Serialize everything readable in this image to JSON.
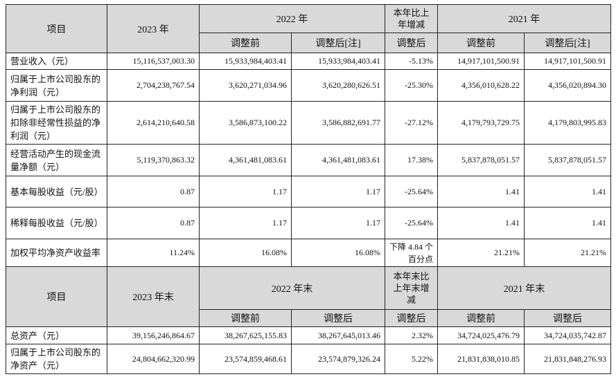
{
  "header1": {
    "item": "项目",
    "y2023": "2023 年",
    "y2022": "2022 年",
    "change": "本年比上年增减",
    "y2021": "2021 年",
    "before_adj": "调整前",
    "after_adj_note": "调整后[注]",
    "after_adj": "调整后"
  },
  "rows1": [
    {
      "label": "营业收入（元）",
      "v2023": "15,116,537,003.30",
      "v2022_before": "15,933,984,403.41",
      "v2022_after": "15,933,984,403.41",
      "change": "-5.13%",
      "v2021_before": "14,917,101,500.91",
      "v2021_after": "14,917,101,500.91"
    },
    {
      "label": "归属于上市公司股东的净利润（元）",
      "v2023": "2,704,238,767.54",
      "v2022_before": "3,620,271,034.96",
      "v2022_after": "3,620,280,626.51",
      "change": "-25.30%",
      "v2021_before": "4,356,010,628.22",
      "v2021_after": "4,356,020,894.30"
    },
    {
      "label": "归属于上市公司股东的扣除非经常性损益的净利润（元）",
      "v2023": "2,614,210,640.58",
      "v2022_before": "3,586,873,100.22",
      "v2022_after": "3,586,882,691.77",
      "change": "-27.12%",
      "v2021_before": "4,179,793,729.75",
      "v2021_after": "4,179,803,995.83"
    },
    {
      "label": "经营活动产生的现金流量净额（元）",
      "v2023": "5,119,370,863.32",
      "v2022_before": "4,361,481,083.61",
      "v2022_after": "4,361,481,083.61",
      "change": "17.38%",
      "v2021_before": "5,837,878,051.57",
      "v2021_after": "5,837,878,051.57"
    },
    {
      "label": "基本每股收益（元/股）",
      "v2023": "0.87",
      "v2022_before": "1.17",
      "v2022_after": "1.17",
      "change": "-25.64%",
      "v2021_before": "1.41",
      "v2021_after": "1.41"
    },
    {
      "label": "稀释每股收益（元/股）",
      "v2023": "0.87",
      "v2022_before": "1.17",
      "v2022_after": "1.17",
      "change": "-25.64%",
      "v2021_before": "1.41",
      "v2021_after": "1.41"
    },
    {
      "label": "加权平均净资产收益率",
      "v2023": "11.24%",
      "v2022_before": "16.08%",
      "v2022_after": "16.08%",
      "change": "下降 4.84 个百分点",
      "v2021_before": "21.21%",
      "v2021_after": "21.21%"
    }
  ],
  "header2": {
    "item": "项目",
    "y2023": "2023 年末",
    "y2022": "2022 年末",
    "change": "本年末比上年末增减",
    "y2021": "2021 年末",
    "before_adj": "调整前",
    "after_adj": "调整后"
  },
  "rows2": [
    {
      "label": "总资产（元）",
      "v2023": "39,156,246,864.67",
      "v2022_before": "38,267,625,155.83",
      "v2022_after": "38,267,645,013.46",
      "change": "2.32%",
      "v2021_before": "34,724,025,476.79",
      "v2021_after": "34,724,035,742.87"
    },
    {
      "label": "归属于上市公司股东的净资产（元）",
      "v2023": "24,804,662,320.99",
      "v2022_before": "23,574,859,468.61",
      "v2022_after": "23,574,879,326.24",
      "change": "5.22%",
      "v2021_before": "21,831,838,010.85",
      "v2021_after": "21,831,848,276.93"
    }
  ]
}
